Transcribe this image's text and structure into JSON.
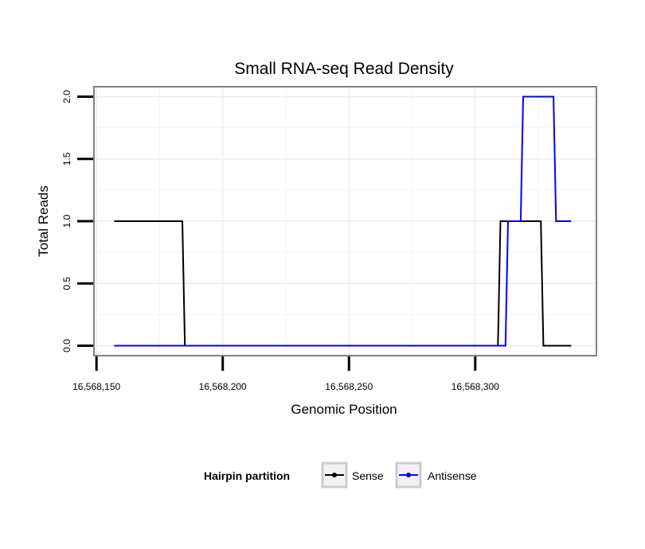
{
  "chart_data": {
    "type": "line",
    "title": "Small RNA-seq Read Density",
    "xlabel": "Genomic Position",
    "ylabel": "Total Reads",
    "xlim": [
      16568149,
      16568348
    ],
    "ylim": [
      -0.08,
      2.08
    ],
    "x_ticks": [
      16568150,
      16568200,
      16568250,
      16568300
    ],
    "x_tick_labels": [
      "16,568,150",
      "16,568,200",
      "16,568,250",
      "16,568,300"
    ],
    "y_ticks": [
      0,
      0.5,
      1,
      1.5,
      2
    ],
    "y_tick_labels": [
      "0.0",
      "0.5",
      "1.0",
      "1.5",
      "2.0"
    ],
    "grid": true,
    "legend": {
      "title": "Hairpin partition",
      "position": "bottom",
      "entries": [
        "Sense",
        "Antisense"
      ]
    },
    "series": [
      {
        "name": "Sense",
        "color": "#000000",
        "x": [
          16568157,
          16568184,
          16568185,
          16568309,
          16568310,
          16568326,
          16568327,
          16568338
        ],
        "y": [
          1,
          1,
          0,
          0,
          1,
          1,
          0,
          0
        ]
      },
      {
        "name": "Antisense",
        "color": "#0000ff",
        "x": [
          16568157,
          16568312,
          16568313,
          16568318,
          16568319,
          16568331,
          16568332,
          16568338
        ],
        "y": [
          0,
          0,
          1,
          1,
          2,
          2,
          1,
          1
        ]
      }
    ]
  }
}
